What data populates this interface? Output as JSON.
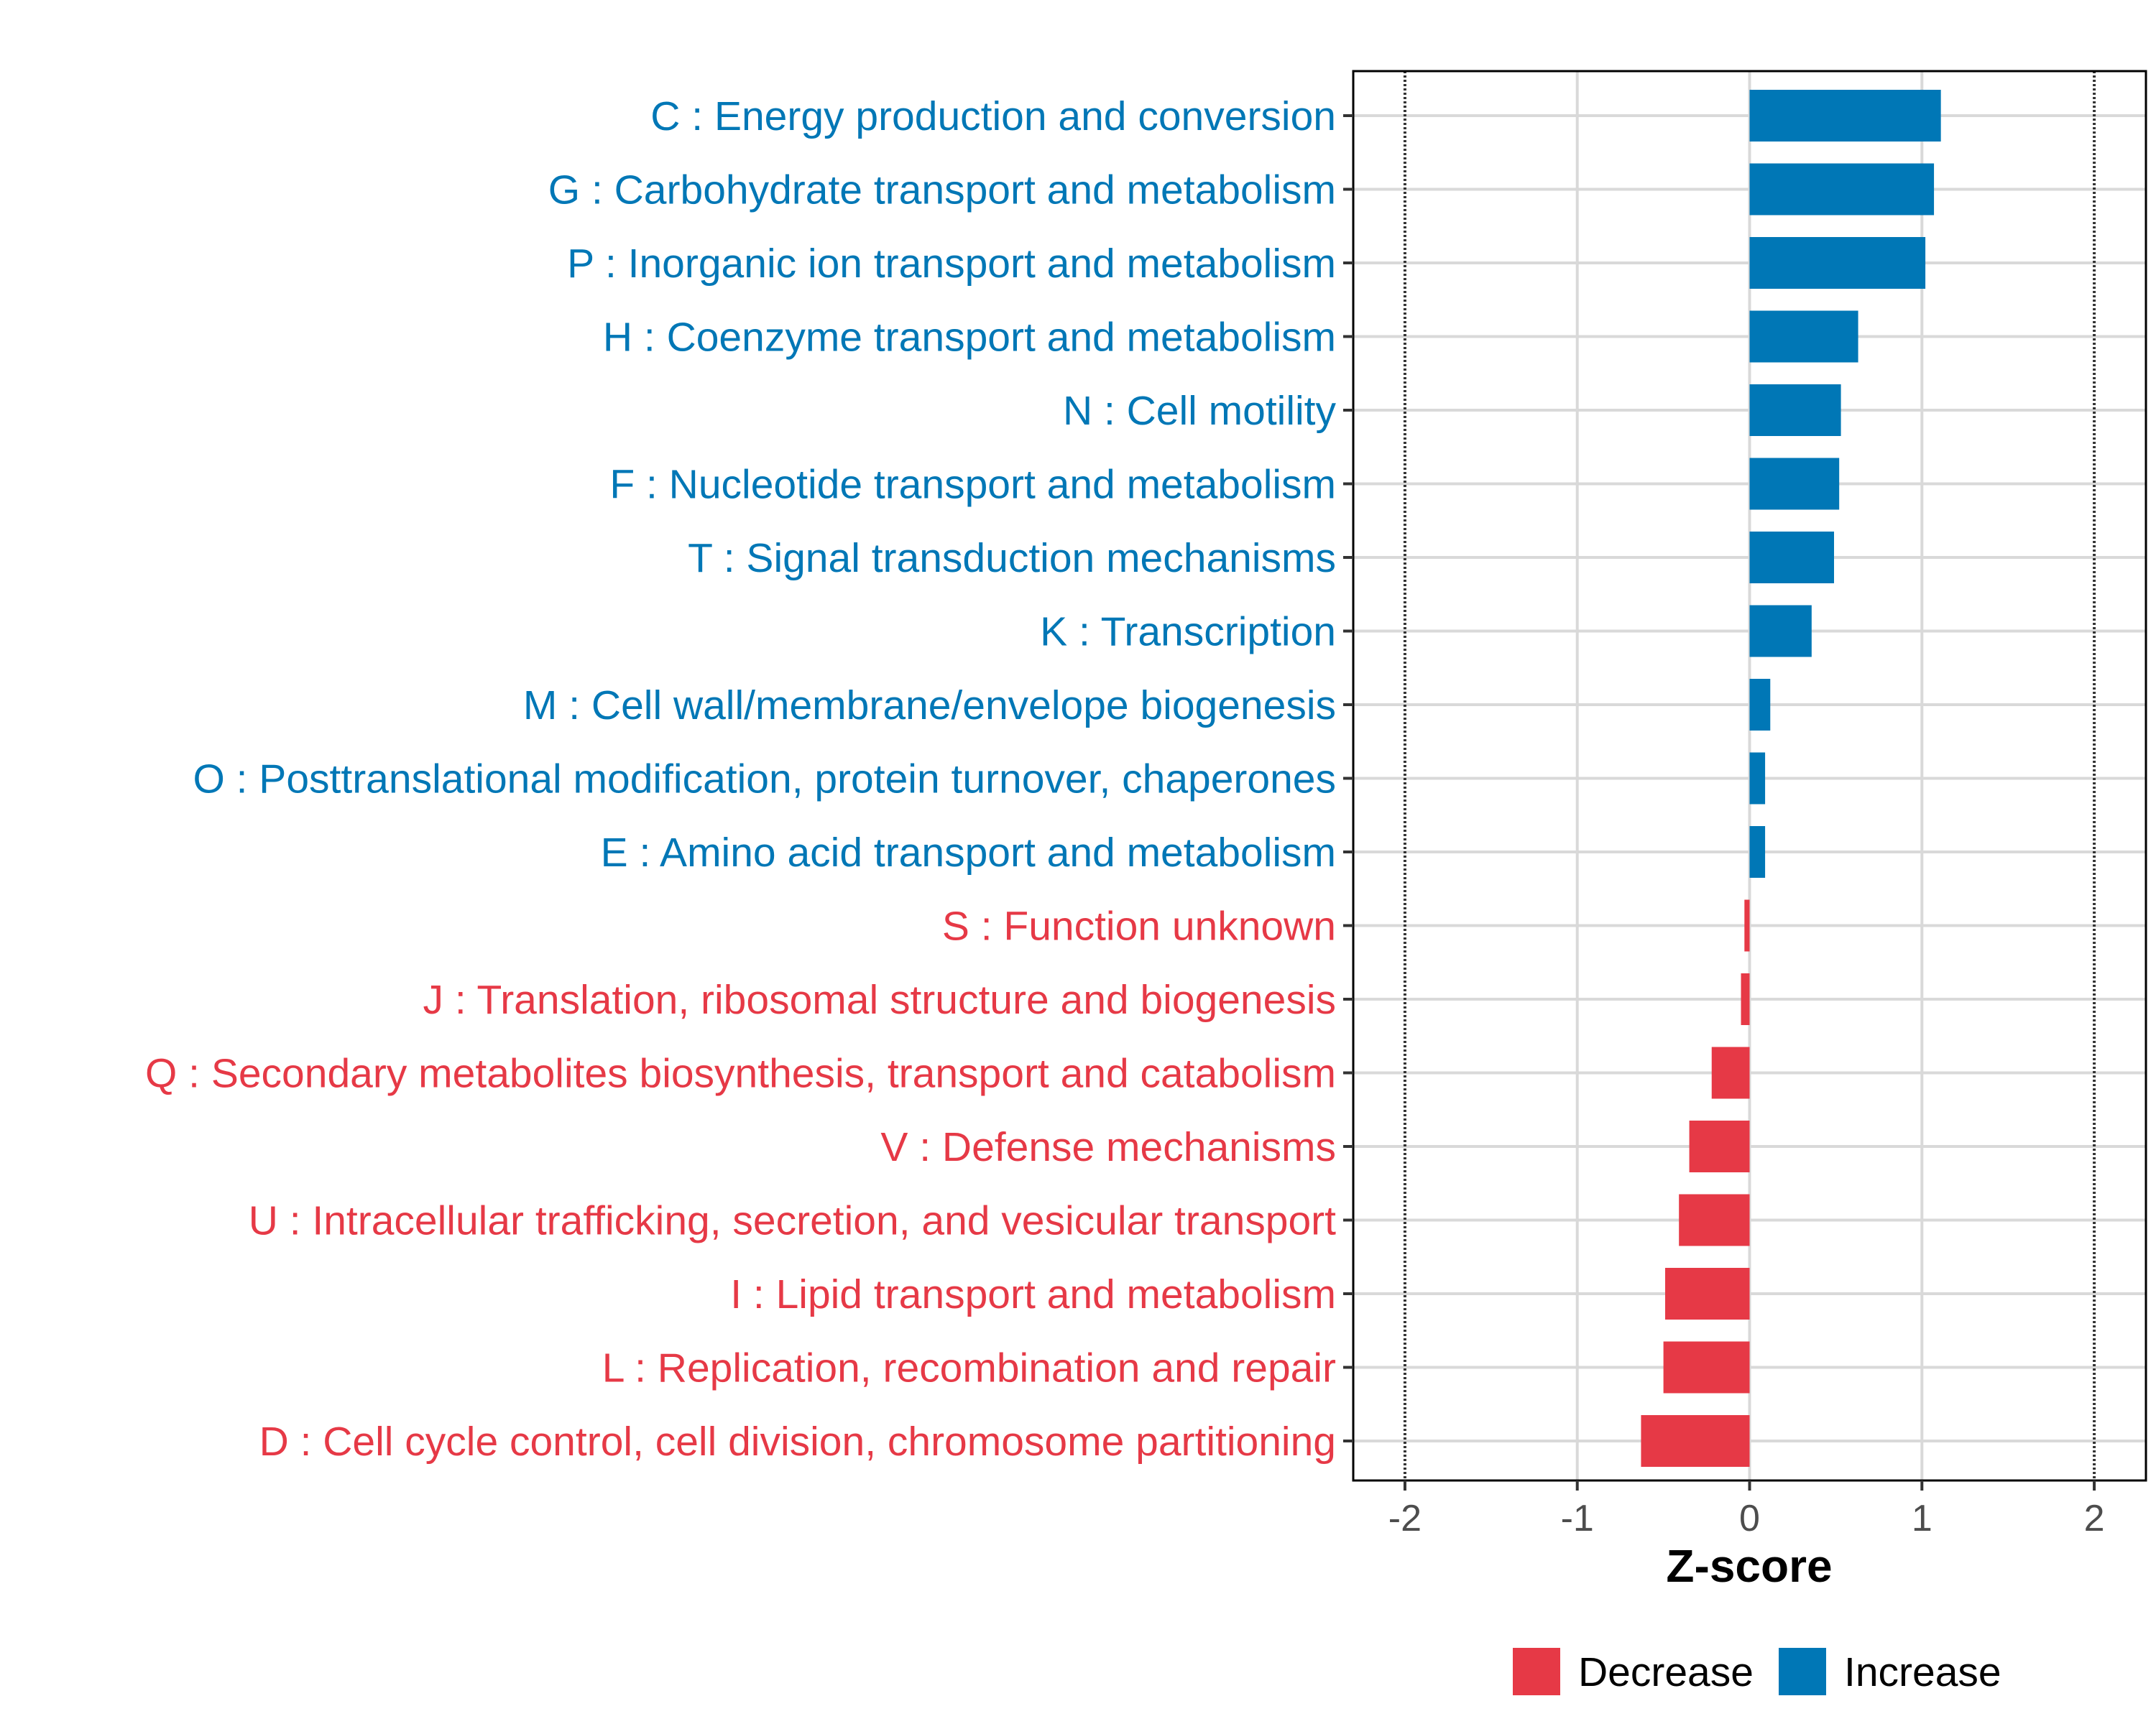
{
  "chart_data": {
    "type": "bar",
    "orientation": "horizontal",
    "categories": [
      "C : Energy production and conversion",
      "G : Carbohydrate transport and metabolism",
      "P : Inorganic ion transport and metabolism",
      "H : Coenzyme transport and metabolism",
      "N : Cell motility",
      "F : Nucleotide transport and metabolism",
      "T : Signal transduction mechanisms",
      "K : Transcription",
      "M : Cell wall/membrane/envelope biogenesis",
      "O : Posttranslational modification, protein turnover, chaperones",
      "E : Amino acid transport and metabolism",
      "S : Function unknown",
      "J : Translation, ribosomal structure and biogenesis",
      "Q : Secondary metabolites biosynthesis, transport and catabolism",
      "V : Defense mechanisms",
      "U : Intracellular trafficking, secretion, and vesicular transport",
      "I : Lipid transport and metabolism",
      "L : Replication, recombination and repair",
      "D : Cell cycle control, cell division, chromosome partitioning"
    ],
    "values": [
      1.11,
      1.07,
      1.02,
      0.63,
      0.53,
      0.52,
      0.49,
      0.36,
      0.12,
      0.09,
      0.09,
      -0.03,
      -0.05,
      -0.22,
      -0.35,
      -0.41,
      -0.49,
      -0.5,
      -0.63
    ],
    "groups": [
      "Increase",
      "Increase",
      "Increase",
      "Increase",
      "Increase",
      "Increase",
      "Increase",
      "Increase",
      "Increase",
      "Increase",
      "Increase",
      "Decrease",
      "Decrease",
      "Decrease",
      "Decrease",
      "Decrease",
      "Decrease",
      "Decrease",
      "Decrease"
    ],
    "xlabel": "Z-score",
    "xlim": [
      -2.3,
      2.3
    ],
    "xticks": [
      -2,
      -1,
      0,
      1,
      2
    ],
    "xtick_labels": [
      "-2",
      "-1",
      "0",
      "1",
      "2"
    ],
    "reference_lines": [
      -2,
      2
    ],
    "grid": true,
    "legend": {
      "placement": "bottom",
      "entries": [
        {
          "label": "Decrease",
          "color": "#E63946"
        },
        {
          "label": "Increase",
          "color": "#0077B6"
        }
      ]
    },
    "colors": {
      "Increase": "#0077B6",
      "Decrease": "#E63946"
    }
  }
}
